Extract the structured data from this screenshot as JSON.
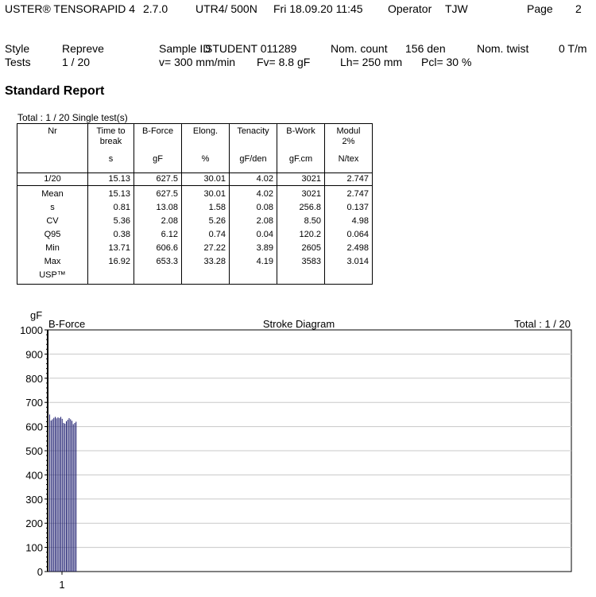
{
  "header": {
    "product": "USTER® TENSORAPID 4",
    "version": "2.7.0",
    "instrument": "UTR4/  500N",
    "datetime": "Fri 18.09.20 11:45",
    "operator_label": "Operator",
    "operator": "TJW",
    "page_label": "Page",
    "page": "2"
  },
  "info": {
    "style_label": "Style",
    "style": "Repreve",
    "sample_label": "Sample ID",
    "sample": "STUDENT  011289",
    "nom_count_label": "Nom. count",
    "nom_count": "156 den",
    "nom_twist_label": "Nom. twist",
    "nom_twist": "0 T/m",
    "tests_label": "Tests",
    "tests": "1 / 20",
    "speed": "v=  300 mm/min",
    "fv": "Fv=  8.8 gF",
    "lh": "Lh=  250 mm",
    "pcl": "Pcl=    30 %"
  },
  "report_title": "Standard Report",
  "total_label": "Total : 1 / 20 Single test(s)",
  "table": {
    "columns": [
      {
        "name": "Nr",
        "unit": ""
      },
      {
        "name": "Time to break",
        "unit": "s"
      },
      {
        "name": "B-Force",
        "unit": "gF"
      },
      {
        "name": "Elong.",
        "unit": "%"
      },
      {
        "name": "Tenacity",
        "unit": "gF/den"
      },
      {
        "name": "B-Work",
        "unit": "gF.cm"
      },
      {
        "name": "Modul 2%",
        "unit": "N/tex"
      }
    ],
    "sample_row": [
      "1/20",
      "15.13",
      "627.5",
      "30.01",
      "4.02",
      "3021",
      "2.747"
    ],
    "stats": [
      [
        "Mean",
        "15.13",
        "627.5",
        "30.01",
        "4.02",
        "3021",
        "2.747"
      ],
      [
        "s",
        "0.81",
        "13.08",
        "1.58",
        "0.08",
        "256.8",
        "0.137"
      ],
      [
        "CV",
        "5.36",
        "2.08",
        "5.26",
        "2.08",
        "8.50",
        "4.98"
      ],
      [
        "Q95",
        "0.38",
        "6.12",
        "0.74",
        "0.04",
        "120.2",
        "0.064"
      ],
      [
        "Min",
        "13.71",
        "606.6",
        "27.22",
        "3.89",
        "2605",
        "2.498"
      ],
      [
        "Max",
        "16.92",
        "653.3",
        "33.28",
        "4.19",
        "3583",
        "3.014"
      ],
      [
        "USP™",
        "",
        "",
        "",
        "",
        "",
        ""
      ]
    ]
  },
  "chart_data": {
    "type": "bar",
    "title": "Stroke Diagram",
    "series_label": "B-Force",
    "total_label": "Total : 1 / 20",
    "ylabel": "gF",
    "ylim": [
      0,
      1000
    ],
    "yticks": [
      0,
      100,
      200,
      300,
      400,
      500,
      600,
      700,
      800,
      900,
      1000
    ],
    "x_tick_label": "1",
    "grid": true,
    "bar_color": "#1a1a6e",
    "values": [
      650,
      625,
      630,
      636,
      640,
      634,
      638,
      635,
      640,
      632,
      615,
      612,
      622,
      628,
      635,
      630,
      624,
      610,
      615,
      620
    ]
  }
}
